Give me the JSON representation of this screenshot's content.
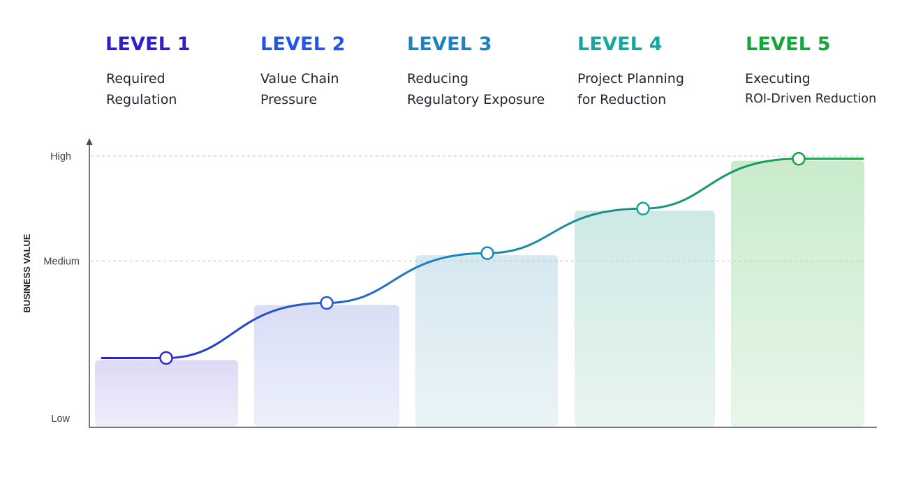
{
  "levels": [
    {
      "title": "LEVEL 1",
      "line1": "Required",
      "line2": "Regulation",
      "color": "#2d1fd0",
      "value": 0.23
    },
    {
      "title": "LEVEL 2",
      "line1": "Value Chain",
      "line2": "Pressure",
      "color": "#2356e6",
      "value": 0.44
    },
    {
      "title": "LEVEL 3",
      "line1": "Reducing",
      "line2": "Regulatory Exposure",
      "color": "#1d82c0",
      "value": 0.63
    },
    {
      "title": "LEVEL 4",
      "line1": "Project Planning",
      "line2": "for Reduction",
      "color": "#14a79c",
      "value": 0.8
    },
    {
      "title": "LEVEL 5",
      "line1": "Executing",
      "line2": "ROI-Driven Reduction",
      "color": "#15a538",
      "value": 0.99
    }
  ],
  "y_axis": {
    "label": "BUSINESS VALUE",
    "ticks": [
      {
        "label": "High",
        "value": 1.0
      },
      {
        "label": "Medium",
        "value": 0.6
      },
      {
        "label": "Low",
        "value": 0.0
      }
    ],
    "gridlines": [
      "High",
      "Medium"
    ]
  },
  "colors": {
    "axis": "#4a4a4a",
    "grid": "#bfc3c8",
    "tick_text": "#3d4047",
    "marker_fill": "#ffffff",
    "curve_start": "#2d1fd0",
    "curve_mid": "#1d82c0",
    "curve_end": "#15a538",
    "bar_top": [
      "#dcdaf5",
      "#d9def6",
      "#d6e8f0",
      "#cfe9e4",
      "#c9ebcb"
    ],
    "bar_bottom": [
      "#efeefb",
      "#eef0fb",
      "#eaf4f7",
      "#e8f5f1",
      "#e8f6ea"
    ]
  }
}
